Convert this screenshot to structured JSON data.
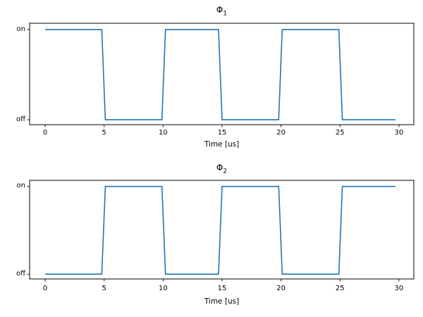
{
  "figure": {
    "background_color": "#ffffff",
    "axes_edge_color": "#000000",
    "text_color": "#000000",
    "line_color": "#1f77b4"
  },
  "chart_data": [
    {
      "type": "line",
      "title_base": "Φ",
      "title_sub": "1",
      "xlabel": "Time [us]",
      "ytick_labels": [
        "off",
        "on"
      ],
      "xticks": [
        0,
        5,
        10,
        15,
        20,
        25,
        30
      ],
      "xlim": [
        -1.32,
        31.26
      ],
      "ylim": [
        -0.055,
        1.07
      ],
      "grid": false,
      "legend": null,
      "line_color": "#1f77b4",
      "signal": {
        "description": "square wave clock phase, 10 us period, 50% duty, starts on",
        "t_start": 0,
        "t_end": 29.7,
        "step": 0.3,
        "half_period_us": 5,
        "starts_high": true,
        "low_value": 0,
        "high_value": 1
      },
      "high_intervals_us": [
        [
          0,
          5
        ],
        [
          10,
          15
        ],
        [
          20,
          25
        ]
      ]
    },
    {
      "type": "line",
      "title_base": "Φ",
      "title_sub": "2",
      "xlabel": "Time [us]",
      "ytick_labels": [
        "off",
        "on"
      ],
      "xticks": [
        0,
        5,
        10,
        15,
        20,
        25,
        30
      ],
      "xlim": [
        -1.32,
        31.26
      ],
      "ylim": [
        -0.055,
        1.07
      ],
      "grid": false,
      "legend": null,
      "line_color": "#1f77b4",
      "signal": {
        "description": "square wave clock phase, 10 us period, 50% duty, starts off (complement of phase 1)",
        "t_start": 0,
        "t_end": 29.7,
        "step": 0.3,
        "half_period_us": 5,
        "starts_high": false,
        "low_value": 0,
        "high_value": 1
      },
      "high_intervals_us": [
        [
          5,
          10
        ],
        [
          15,
          20
        ],
        [
          25,
          29.7
        ]
      ]
    }
  ]
}
